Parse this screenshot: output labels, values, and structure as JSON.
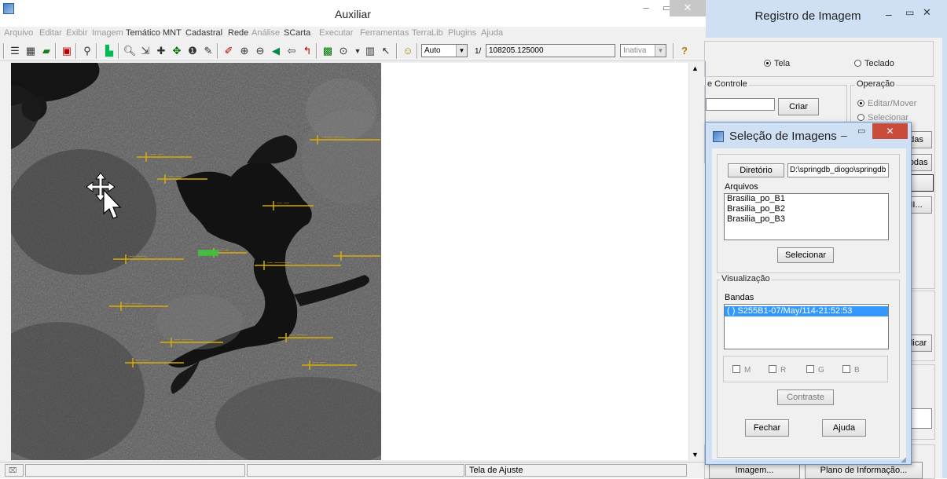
{
  "aux": {
    "title": "Auxiliar",
    "menu": [
      "Arquivo",
      "Editar",
      "Exibir",
      "Imagem",
      "Temático",
      "MNT",
      "Cadastral",
      "Rede",
      "Análise",
      "SCarta",
      "Executar",
      "Ferramentas",
      "TerraLib",
      "Plugins",
      "Ajuda"
    ],
    "toolbar": {
      "zoom_mode": "Auto",
      "scale_prefix": "1/",
      "scale_value": "108205.125000",
      "status_select": "Inativa",
      "help_glyph": "?"
    },
    "statusbar": {
      "left_icon": "⌧",
      "center_text": "Tela de Ajuste"
    },
    "image_labels": [
      "Brasilia_po_B1",
      "Brasilia_po_B2",
      "Brasilia_po_B3"
    ],
    "colors": {
      "overlay_label": "#e0b000",
      "water": "#151515"
    }
  },
  "reg": {
    "title": "Registro de Imagem",
    "radio_tela": "Tela",
    "radio_teclado": "Teclado",
    "group_controle": "e Controle",
    "criar": "Criar",
    "group_operacao": "Operação",
    "op_editar": "Editar/Mover",
    "op_selecionar": "Selecionar",
    "btn_todas1": "das",
    "btn_todas2": "Todas",
    "btn_ii": "II...",
    "btn_aplicar": "plicar",
    "btn_imagem": "Imagem...",
    "btn_plano": "Plano de Informação..."
  },
  "sel": {
    "title": "Seleção de Imagens",
    "diretorio_btn": "Diretório",
    "diretorio_path": "D:\\springdb_diogo\\springdb",
    "arquivos_label": "Arquivos",
    "arquivos": [
      "Brasilia_po_B1",
      "Brasilia_po_B2",
      "Brasilia_po_B3"
    ],
    "selecionar": "Selecionar",
    "visualizacao": "Visualização",
    "bandas_label": "Bandas",
    "bandas": [
      "( ) S255B1-07/May/114-21:52:53"
    ],
    "check_m": "M",
    "check_r": "R",
    "check_g": "G",
    "check_b": "B",
    "contraste": "Contraste",
    "fechar": "Fechar",
    "ajuda": "Ajuda"
  }
}
